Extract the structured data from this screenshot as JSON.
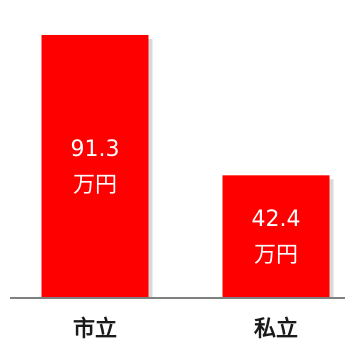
{
  "chart_data": {
    "type": "bar",
    "categories": [
      "市立",
      "私立"
    ],
    "values": [
      91.3,
      42.4
    ],
    "value_labels": [
      [
        "91.3",
        "万円"
      ],
      [
        "42.4",
        "万円"
      ]
    ],
    "unit": "万円",
    "title": "",
    "xlabel": "",
    "ylabel": "",
    "ylim": [
      0,
      100
    ],
    "grid": false,
    "legend": "none",
    "colors": {
      "bar": "#ff0000",
      "bar_shadow": "#d9d9d9",
      "baseline": "#808080",
      "value_label": "#ffffff",
      "tick_label": "#1a1a1a"
    }
  }
}
